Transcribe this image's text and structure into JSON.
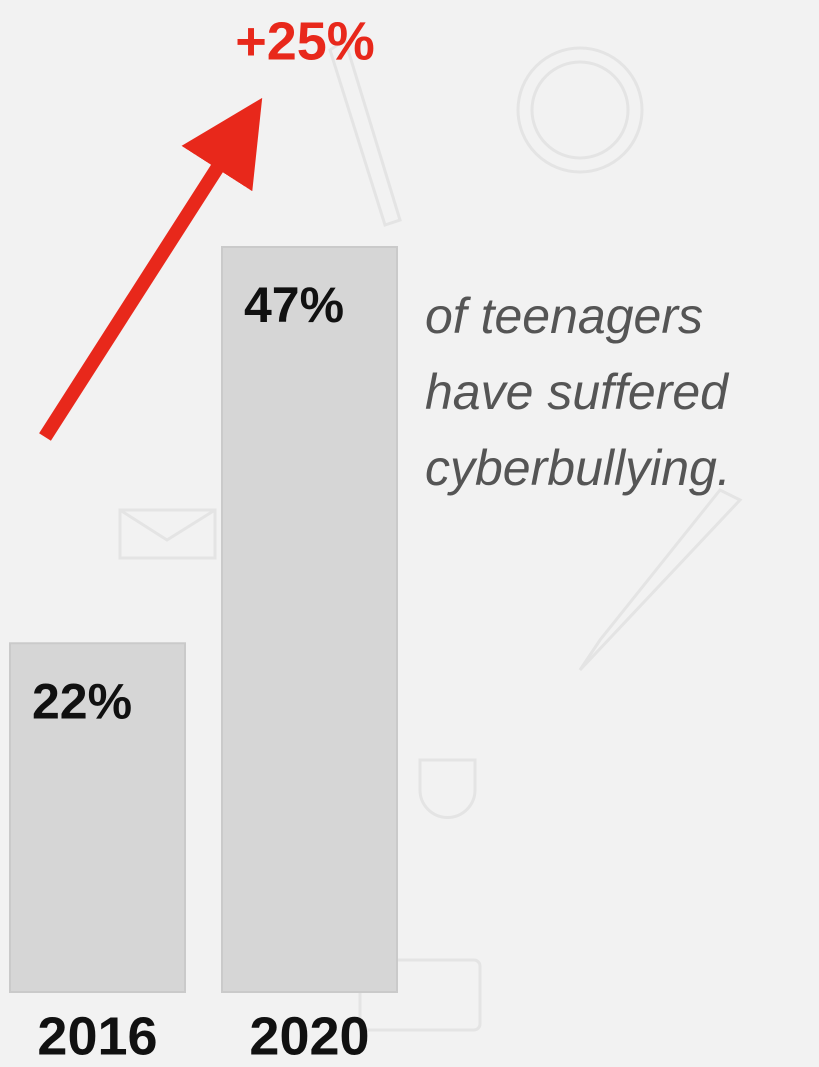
{
  "chart_data": {
    "type": "bar",
    "categories": [
      "2016",
      "2020"
    ],
    "values": [
      22,
      47
    ],
    "value_labels": [
      "22%",
      "47%"
    ],
    "color": "#d6d6d6",
    "annotation": "+25%",
    "caption": [
      "of teenagers",
      "have suffered",
      "cyberbullying."
    ]
  }
}
